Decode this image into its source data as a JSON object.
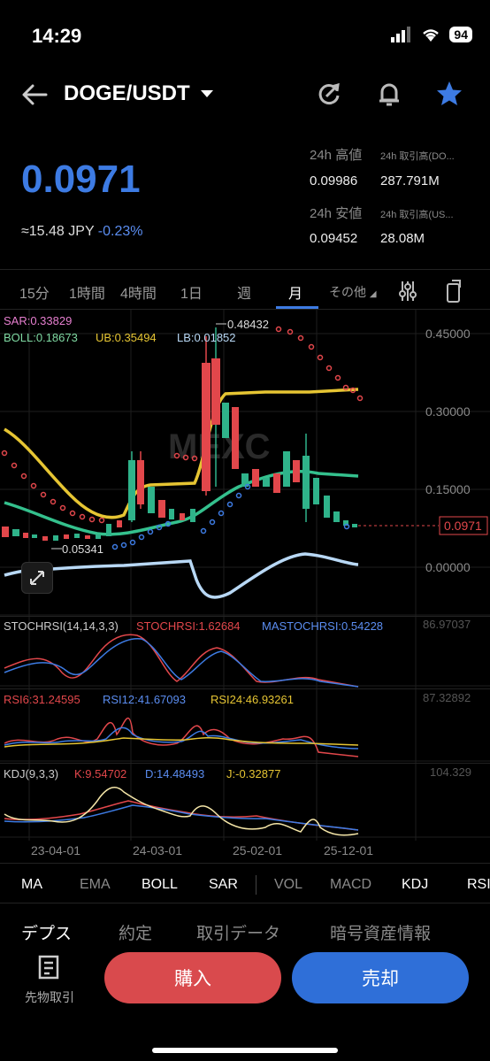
{
  "status": {
    "time": "14:29",
    "battery": "94"
  },
  "header": {
    "pair": "DOGE/USDT"
  },
  "price": {
    "last": "0.0971",
    "jpy": "≈15.48 JPY",
    "change": "-0.23%"
  },
  "stats": {
    "high_label": "24h 高値",
    "high_value": "0.09986",
    "vol_doge_label": "24h 取引高(DO...",
    "vol_doge_value": "287.791M",
    "low_label": "24h 安値",
    "low_value": "0.09452",
    "vol_usdt_label": "24h 取引高(US...",
    "vol_usdt_value": "28.08M"
  },
  "timeframes": [
    "15分",
    "1時間",
    "4時間",
    "1日",
    "週",
    "月",
    "その他"
  ],
  "indicators": {
    "sar": "SAR:0.33829",
    "boll": "BOLL:0.18673",
    "ub": "UB:0.35494",
    "lb": "LB:0.01852",
    "high_marker": "0.48432",
    "low_marker": "0.05341",
    "current_tag": "0.0971",
    "stochrsi_title": "STOCHRSI(14,14,3,3)",
    "stochrsi": "STOCHRSI:1.62684",
    "mastochrsi": "MASTOCHRSI:0.54228",
    "stoch_max": "86.97037",
    "rsi6": "RSI6:31.24595",
    "rsi12": "RSI12:41.67093",
    "rsi24": "RSI24:46.93261",
    "rsi_max": "87.32892",
    "kdj_title": "KDJ(9,3,3)",
    "kdj_k": "K:9.54702",
    "kdj_d": "D:14.48493",
    "kdj_j": "J:-0.32877",
    "kdj_max": "104.329"
  },
  "chart_data": {
    "type": "candlestick",
    "y_ticks": [
      "0.45000",
      "0.30000",
      "0.15000",
      "0.00000"
    ],
    "x_ticks": [
      "23-04-01",
      "24-03-01",
      "25-02-01",
      "25-12-01"
    ],
    "watermark": "MEXC"
  },
  "indicator_bar": [
    "MA",
    "EMA",
    "BOLL",
    "SAR",
    "VOL",
    "MACD",
    "KDJ",
    "RSI"
  ],
  "bottom_tabs": [
    "デプス",
    "約定",
    "取引データ",
    "暗号資産情報"
  ],
  "actions": {
    "futures": "先物取引",
    "buy": "購入",
    "sell": "売却"
  },
  "colors": {
    "accent": "#3d7be3",
    "up": "#2fb38a",
    "down": "#e2474b",
    "buy": "#d94a4d",
    "sell": "#2f6fd8"
  }
}
